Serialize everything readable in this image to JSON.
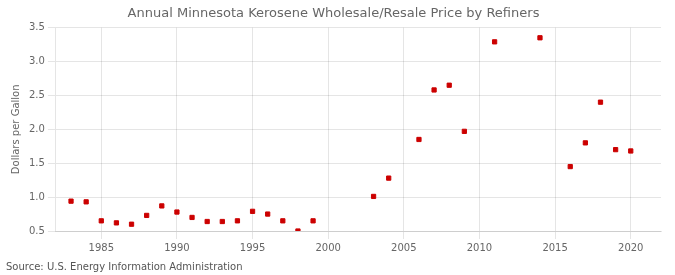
{
  "chart_data": {
    "type": "scatter",
    "title": "Annual Minnesota Kerosene Wholesale/Resale Price by Refiners",
    "ylabel": "Dollars per Gallon",
    "annotations": [
      "Source: U.S. Energy Information Administration"
    ],
    "x": [
      1983,
      1984,
      1985,
      1986,
      1987,
      1988,
      1989,
      1990,
      1991,
      1992,
      1993,
      1994,
      1995,
      1996,
      1997,
      1998,
      1999,
      2003,
      2004,
      2006,
      2007,
      2008,
      2009,
      2011,
      2014,
      2016,
      2017,
      2018,
      2019,
      2020
    ],
    "values": [
      0.94,
      0.93,
      0.65,
      0.62,
      0.6,
      0.73,
      0.87,
      0.78,
      0.7,
      0.64,
      0.64,
      0.65,
      0.79,
      0.75,
      0.65,
      0.5,
      0.65,
      1.01,
      1.28,
      1.85,
      2.58,
      2.65,
      1.97,
      3.29,
      3.35,
      1.45,
      1.8,
      2.4,
      1.7,
      1.68
    ],
    "color": "#cc0000",
    "marker": "square",
    "xlim": [
      1982,
      2022
    ],
    "xticks": [
      1985,
      1990,
      1995,
      2000,
      2005,
      2010,
      2015,
      2020
    ],
    "ylim": [
      0.5,
      3.5
    ],
    "yticks": [
      0.5,
      {
        "value": 1,
        "label": "1.0"
      },
      1.5,
      {
        "value": 2,
        "label": "2.0"
      },
      2.5,
      {
        "value": 3,
        "label": "3.0"
      },
      3.5
    ],
    "grid": true
  }
}
